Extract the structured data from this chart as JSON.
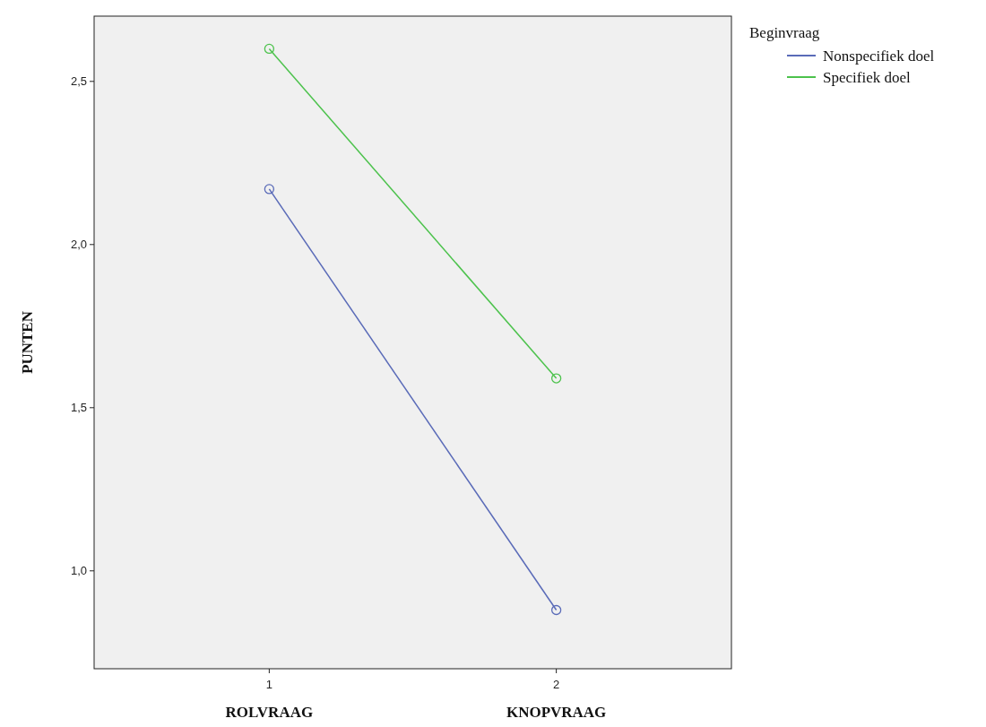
{
  "chart_data": {
    "type": "line",
    "xlabel": null,
    "ylabel": "PUNTEN",
    "legend_title": "Beginvraag",
    "x": [
      1,
      2
    ],
    "xlim": [
      0.39,
      2.61
    ],
    "xticks": [
      1,
      2
    ],
    "ylim": [
      0.7,
      2.7
    ],
    "yticks": [
      {
        "value": 1,
        "label": "1,0"
      },
      {
        "value": 1.5,
        "label": "1,5"
      },
      {
        "value": 2,
        "label": "2,0"
      },
      {
        "value": 2.5,
        "label": "2,5"
      }
    ],
    "series": [
      {
        "name": "Nonspecifiek doel",
        "color": "#5a6bb8",
        "values": [
          2.17,
          0.88
        ]
      },
      {
        "name": "Specifiek doel",
        "color": "#4cc24c",
        "values": [
          2.6,
          1.59
        ]
      }
    ],
    "annotations": [
      "ROLVRAAG",
      "KNOPVRAAG"
    ],
    "marker": "circle",
    "legend": "top right",
    "grid": false
  }
}
